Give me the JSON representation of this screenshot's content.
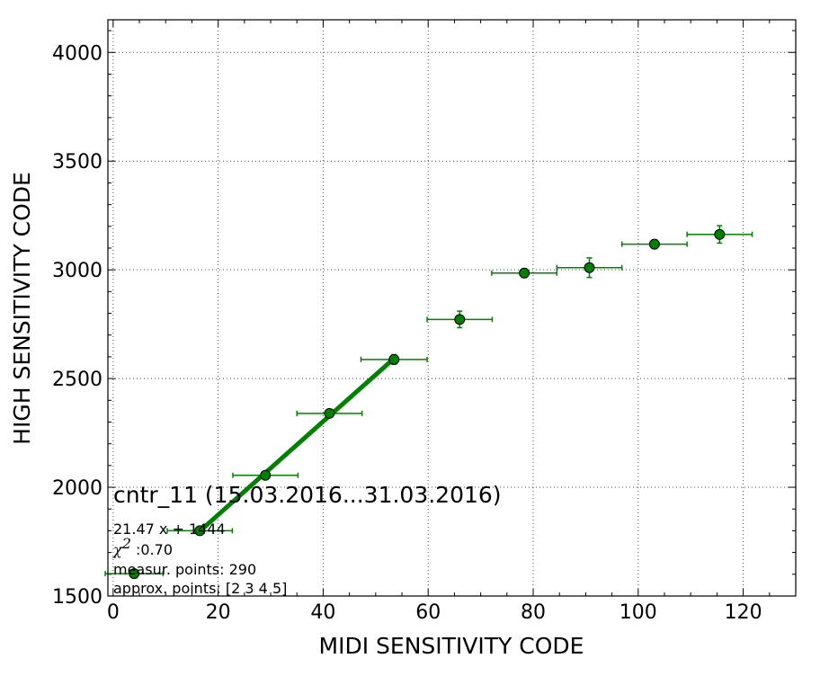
{
  "chart_data": {
    "type": "scatter",
    "xlabel": "MIDI SENSITIVITY CODE",
    "ylabel": "HIGH SENSITIVITY CODE",
    "xlim": [
      -1,
      130
    ],
    "ylim": [
      1500,
      4150
    ],
    "xticks": [
      "0",
      "20",
      "40",
      "60",
      "80",
      "100",
      "120"
    ],
    "yticks": [
      "1500",
      "2000",
      "2500",
      "3000",
      "3500",
      "4000"
    ],
    "grid": true,
    "colors": {
      "series": "#008000",
      "marker_edge": "#000000"
    },
    "points": [
      {
        "x": 4,
        "y": 1603,
        "xerr": 5.5,
        "yerr": 8
      },
      {
        "x": 16.5,
        "y": 1800,
        "xerr": 6.2,
        "yerr": 10
      },
      {
        "x": 29,
        "y": 2055,
        "xerr": 6.2,
        "yerr": 12
      },
      {
        "x": 41.2,
        "y": 2340,
        "xerr": 6.2,
        "yerr": 15
      },
      {
        "x": 53.5,
        "y": 2588,
        "xerr": 6.3,
        "yerr": 22
      },
      {
        "x": 66,
        "y": 2772,
        "xerr": 6.2,
        "yerr": 38
      },
      {
        "x": 78.3,
        "y": 2985,
        "xerr": 6.2,
        "yerr": 20
      },
      {
        "x": 90.7,
        "y": 3010,
        "xerr": 6.2,
        "yerr": 45
      },
      {
        "x": 103.1,
        "y": 3118,
        "xerr": 6.2,
        "yerr": 20
      },
      {
        "x": 115.5,
        "y": 3163,
        "xerr": 6.2,
        "yerr": 40
      }
    ],
    "fit_line": {
      "slope": 21.47,
      "intercept": 1444,
      "x_from": 16.5,
      "x_to": 53.5
    },
    "annotations": {
      "title": "cntr_11 (15.03.2016...31.03.2016)",
      "equation": "21.47 x + 1444",
      "chi2_symbol": "χ",
      "chi2_exp": "2",
      "chi2_value": " :0.70",
      "measured": "measur. points: 290",
      "approx": "approx. points: [2 3 4 5]"
    }
  }
}
